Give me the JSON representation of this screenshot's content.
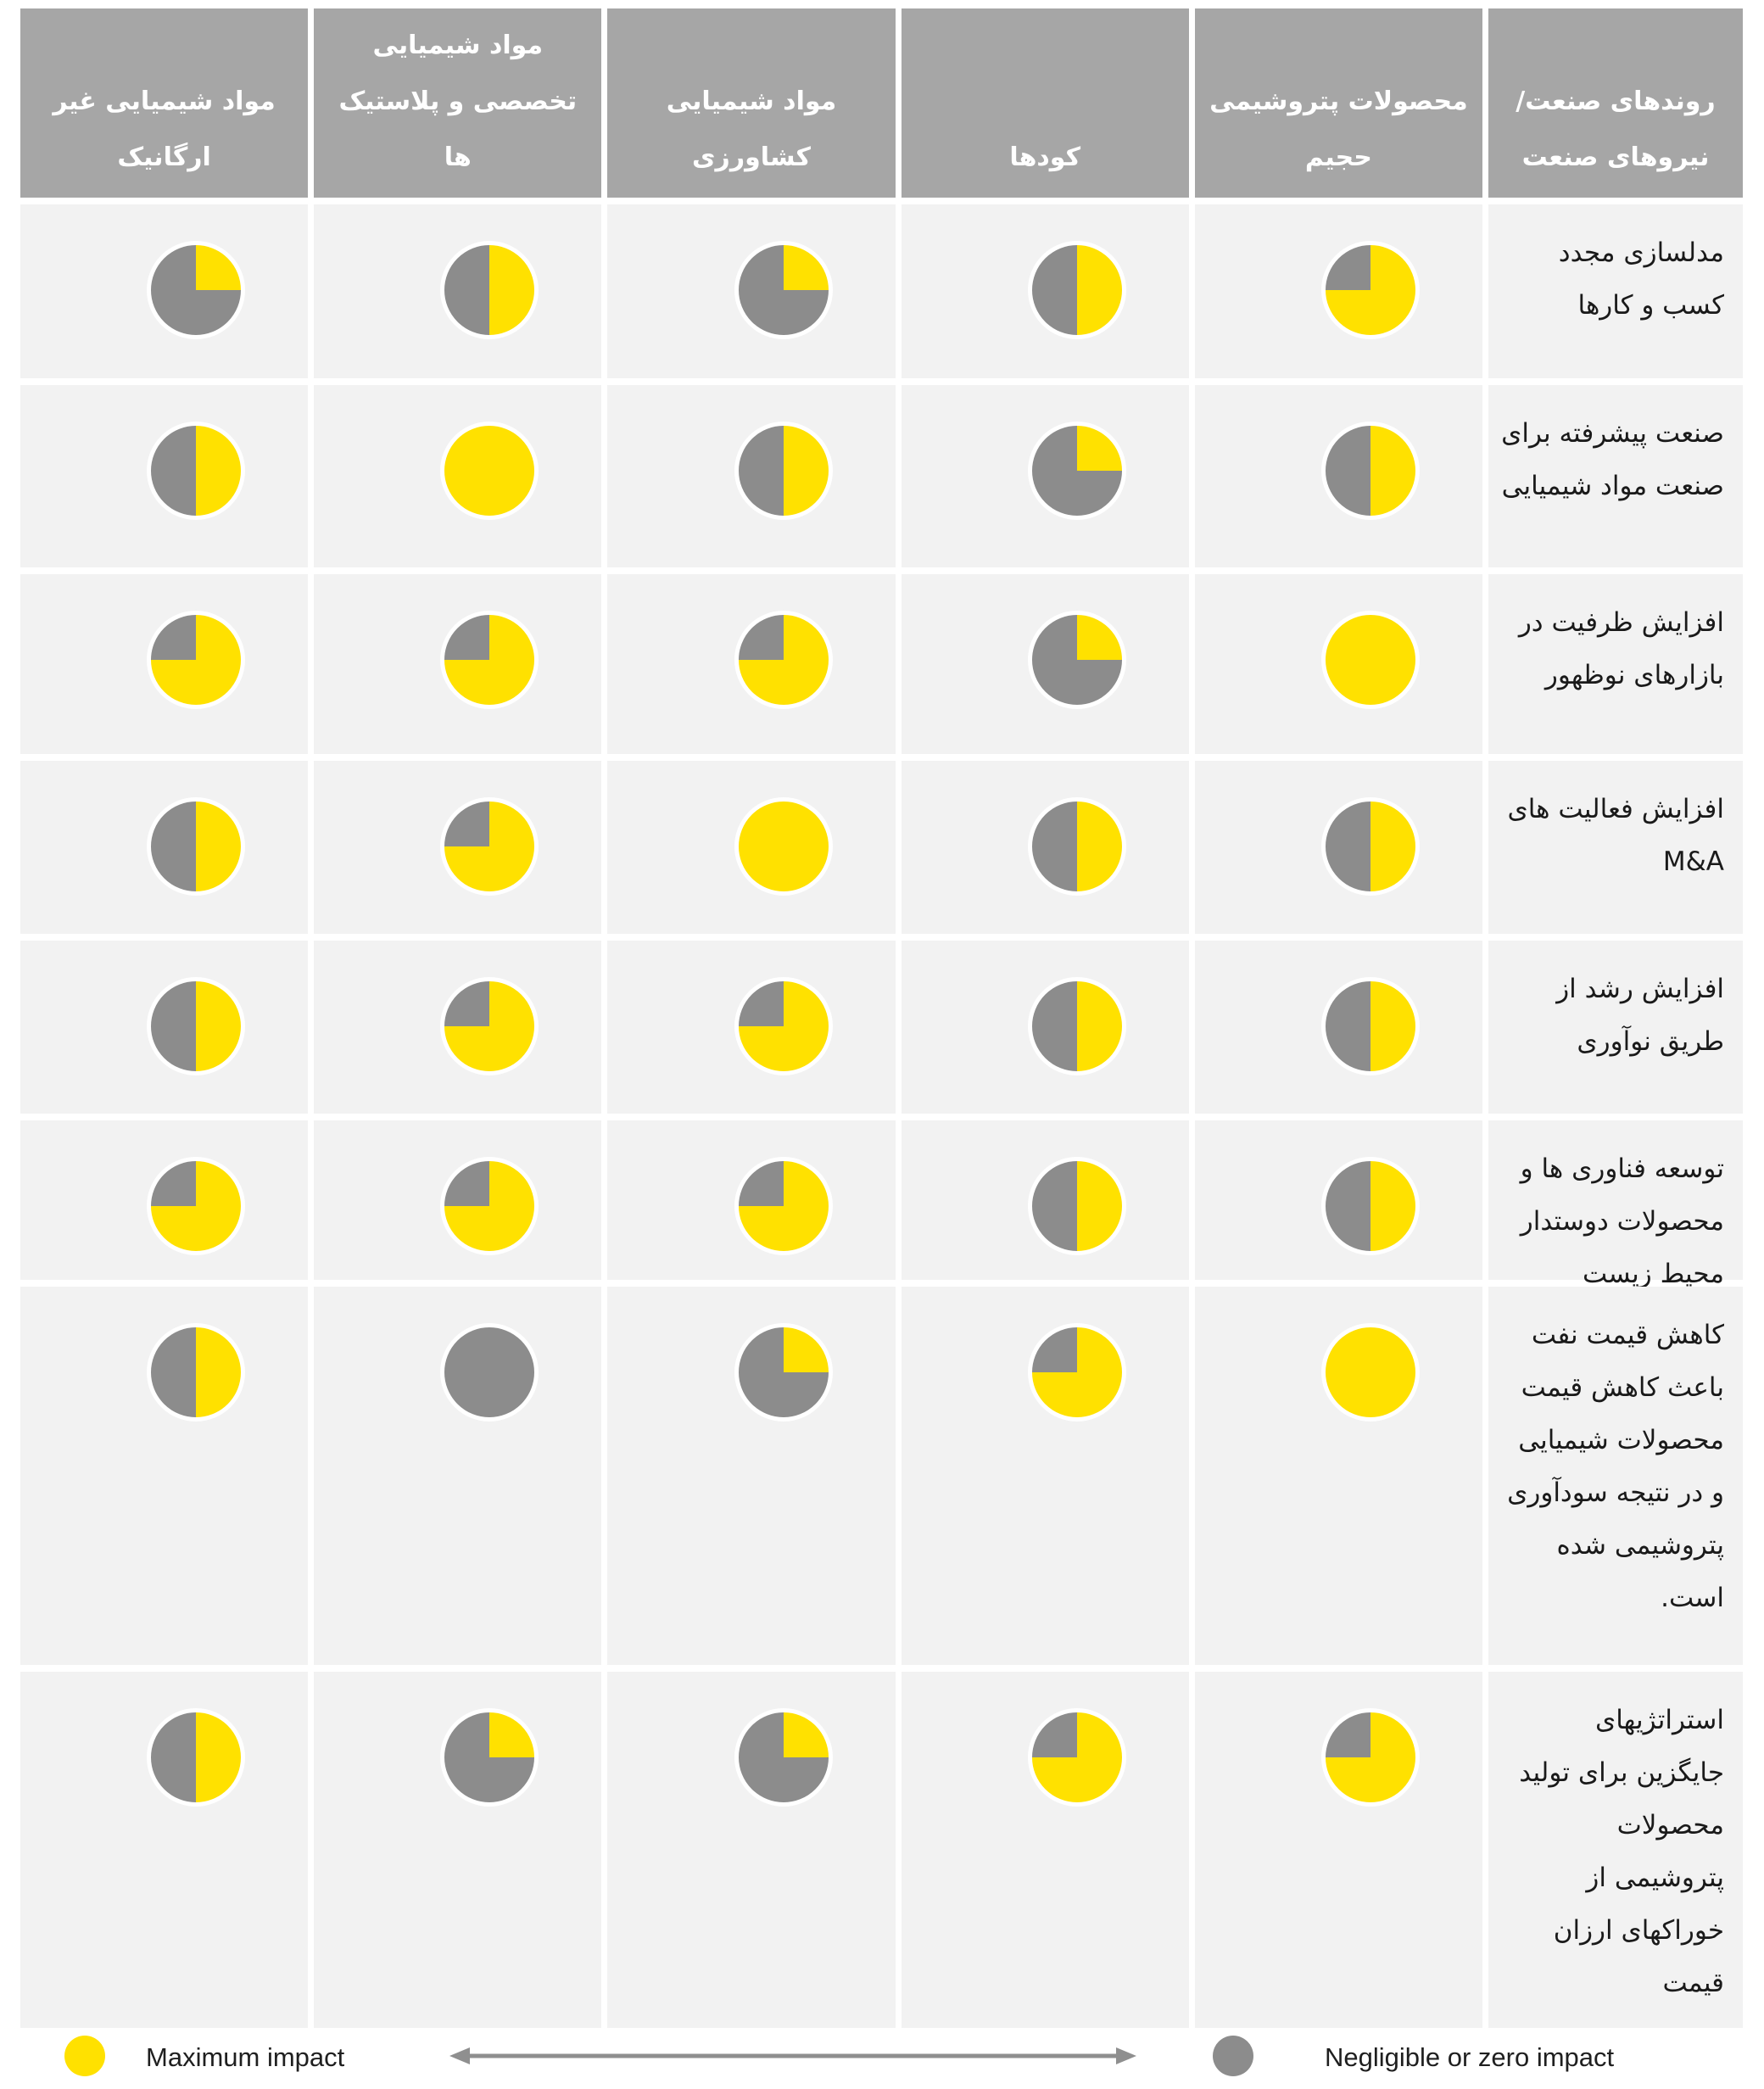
{
  "theme": {
    "yellow": "#FFE100",
    "gray": "#8C8C8C",
    "header_bg": "#A6A6A6",
    "cell_bg": "#F2F2F2",
    "page_bg": "#FFFFFF"
  },
  "legend": {
    "max_label": "Maximum impact",
    "min_label": "Negligible or zero impact",
    "max_color": "#FFE100",
    "min_color": "#8C8C8C"
  },
  "chart_data": {
    "type": "table",
    "value_meaning": "yellow share of pie = impact level (percent), gray = remainder; 100 = maximum impact, 0 = negligible or zero impact",
    "trend_header": "روندهای صنعت/ نیروهای صنعت",
    "columns": [
      "محصولات پتروشیمی حجیم",
      "کودها",
      "مواد شیمیایی کشاورزی",
      "مواد شیمیایی تخصصی و پلاستیک ها",
      "مواد شیمیایی غیر ارگانیک"
    ],
    "rows": [
      {
        "label": "مدلسازی مجدد کسب و کارها",
        "values": [
          75,
          50,
          25,
          50,
          25
        ]
      },
      {
        "label": "صنعت پیشرفته برای صنعت مواد شیمیایی",
        "values": [
          50,
          25,
          50,
          100,
          50
        ]
      },
      {
        "label": "افزایش ظرفیت در بازارهای نوظهور",
        "values": [
          100,
          25,
          75,
          75,
          75
        ]
      },
      {
        "label": "افزایش فعالیت های M&A",
        "values": [
          50,
          50,
          100,
          75,
          50
        ]
      },
      {
        "label": "افزایش رشد از طریق نوآوری",
        "values": [
          50,
          50,
          75,
          75,
          50
        ]
      },
      {
        "label": "توسعه فناوری ها و محصولات دوستدار محیط زیست",
        "values": [
          50,
          50,
          75,
          75,
          75
        ]
      },
      {
        "label": "کاهش قیمت نفت باعث کاهش قیمت محصولات شیمیایی و در نتیجه سودآوری پتروشیمی شده است.",
        "values": [
          100,
          75,
          25,
          0,
          50
        ]
      },
      {
        "label": "استراتژیهای جایگزین برای تولید محصولات پتروشیمی از خوراکهای ارزان قیمت",
        "values": [
          75,
          75,
          25,
          25,
          50
        ]
      }
    ]
  }
}
